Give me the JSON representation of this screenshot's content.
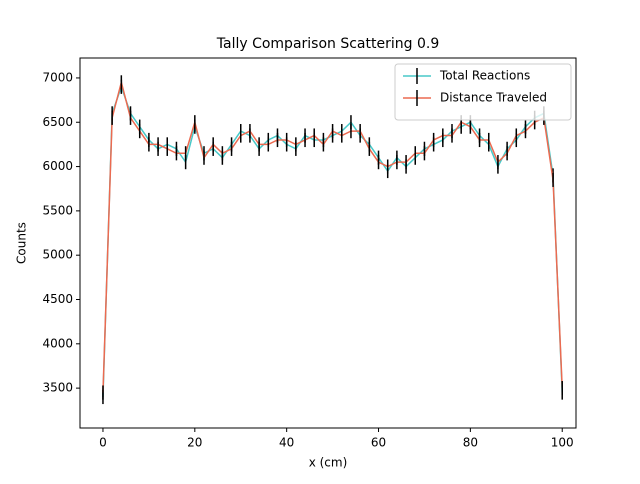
{
  "chart_data": {
    "type": "errorbar-line",
    "title": "Tally Comparison Scattering 0.9",
    "xlabel": "x (cm)",
    "ylabel": "Counts",
    "x": [
      0,
      2,
      4,
      6,
      8,
      10,
      12,
      14,
      16,
      18,
      20,
      22,
      24,
      26,
      28,
      30,
      32,
      34,
      36,
      38,
      40,
      42,
      44,
      46,
      48,
      50,
      52,
      54,
      56,
      58,
      60,
      62,
      64,
      66,
      68,
      70,
      72,
      74,
      76,
      78,
      80,
      82,
      84,
      86,
      88,
      90,
      92,
      94,
      96,
      98,
      100
    ],
    "series": [
      {
        "name": "Total Reactions",
        "color": "#48c9c9",
        "yerr": 80,
        "values": [
          3400,
          6600,
          6900,
          6600,
          6450,
          6300,
          6200,
          6250,
          6200,
          6050,
          6450,
          6150,
          6200,
          6100,
          6250,
          6400,
          6350,
          6200,
          6300,
          6350,
          6250,
          6200,
          6350,
          6300,
          6300,
          6350,
          6400,
          6500,
          6350,
          6250,
          6100,
          5950,
          6100,
          6000,
          6100,
          6200,
          6250,
          6300,
          6400,
          6450,
          6500,
          6350,
          6250,
          6000,
          6200,
          6300,
          6450,
          6550,
          6600,
          5900,
          3450
        ]
      },
      {
        "name": "Distance Traveled",
        "color": "#ec6a50",
        "yerr": 80,
        "values": [
          3450,
          6550,
          6950,
          6550,
          6400,
          6250,
          6250,
          6200,
          6150,
          6150,
          6500,
          6100,
          6250,
          6150,
          6200,
          6350,
          6400,
          6250,
          6250,
          6300,
          6300,
          6250,
          6300,
          6350,
          6250,
          6400,
          6350,
          6400,
          6400,
          6200,
          6050,
          6000,
          6050,
          6050,
          6150,
          6150,
          6300,
          6350,
          6350,
          6500,
          6450,
          6300,
          6300,
          6050,
          6150,
          6350,
          6400,
          6500,
          6550,
          5850,
          3500
        ]
      }
    ],
    "xlim": [
      -5,
      103
    ],
    "ylim": [
      3050,
      7225
    ],
    "xticks": [
      0,
      20,
      40,
      60,
      80,
      100
    ],
    "yticks": [
      3500,
      4000,
      4500,
      5000,
      5500,
      6000,
      6500,
      7000
    ],
    "legend": "upper right"
  }
}
